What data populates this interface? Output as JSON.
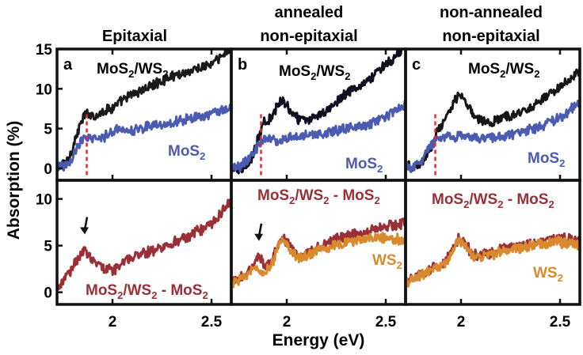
{
  "figure": {
    "column_titles": {
      "a": [
        "Epitaxial"
      ],
      "b": [
        "annealed",
        "non-epitaxial"
      ],
      "c": [
        "non-annealed",
        "non-epitaxial"
      ]
    },
    "ylabel": "Absorption (%)",
    "xlabel": "Energy (eV)",
    "colors": {
      "heterostructure": "#1a1a1a",
      "heterostructure_annealed": "#0e0e1e",
      "mos2": "#4a5bb0",
      "difference": "#9a2f35",
      "ws2": "#d98a2e",
      "marker_line": "#e8283a",
      "arrow": "#111111"
    }
  },
  "chart_data": [
    {
      "panel": "a",
      "title": "Epitaxial",
      "row": "top",
      "type": "line",
      "xlim": [
        1.72,
        2.6
      ],
      "ylim": [
        -1.5,
        15
      ],
      "yticks": [
        0,
        5,
        10,
        15
      ],
      "xticks": [
        2,
        2.5
      ],
      "marker_energy": 1.87,
      "series": [
        {
          "label": [
            "MoS",
            "2",
            "/WS",
            "2"
          ],
          "color": "#1a1a1a",
          "points": [
            [
              1.72,
              0.3
            ],
            [
              1.75,
              0.5
            ],
            [
              1.78,
              1.2
            ],
            [
              1.81,
              3.5
            ],
            [
              1.84,
              5.6
            ],
            [
              1.86,
              6.7
            ],
            [
              1.88,
              6.9
            ],
            [
              1.92,
              6.6
            ],
            [
              1.96,
              7.3
            ],
            [
              2.0,
              7.6
            ],
            [
              2.05,
              8.5
            ],
            [
              2.1,
              9.3
            ],
            [
              2.2,
              10.4
            ],
            [
              2.3,
              11.6
            ],
            [
              2.4,
              12.3
            ],
            [
              2.5,
              13.1
            ],
            [
              2.55,
              14.0
            ],
            [
              2.6,
              15.2
            ]
          ]
        },
        {
          "label": [
            "MoS",
            "2"
          ],
          "color": "#4a5bb0",
          "points": [
            [
              1.72,
              0.2
            ],
            [
              1.77,
              0.3
            ],
            [
              1.8,
              1.5
            ],
            [
              1.84,
              3.4
            ],
            [
              1.88,
              4.1
            ],
            [
              1.92,
              3.6
            ],
            [
              1.96,
              4.0
            ],
            [
              2.0,
              4.7
            ],
            [
              2.05,
              5.0
            ],
            [
              2.1,
              4.8
            ],
            [
              2.2,
              5.4
            ],
            [
              2.3,
              5.8
            ],
            [
              2.4,
              6.3
            ],
            [
              2.5,
              6.9
            ],
            [
              2.6,
              7.6
            ]
          ]
        }
      ]
    },
    {
      "panel": "b",
      "title": "annealed non-epitaxial",
      "row": "top",
      "type": "line",
      "xlim": [
        1.72,
        2.6
      ],
      "ylim": [
        -1.5,
        15
      ],
      "xticks": [
        2,
        2.5
      ],
      "marker_energy": 1.87,
      "series": [
        {
          "label": [
            "MoS",
            "2",
            "/WS",
            "2"
          ],
          "color": "#0e0e1e",
          "points": [
            [
              1.72,
              0.2
            ],
            [
              1.76,
              0.0
            ],
            [
              1.8,
              0.4
            ],
            [
              1.83,
              1.6
            ],
            [
              1.86,
              4.0
            ],
            [
              1.88,
              5.6
            ],
            [
              1.92,
              6.3
            ],
            [
              1.96,
              8.2
            ],
            [
              1.98,
              8.8
            ],
            [
              2.01,
              7.5
            ],
            [
              2.05,
              6.3
            ],
            [
              2.1,
              5.9
            ],
            [
              2.15,
              6.5
            ],
            [
              2.2,
              7.3
            ],
            [
              2.3,
              9.5
            ],
            [
              2.4,
              10.9
            ],
            [
              2.5,
              13.0
            ],
            [
              2.6,
              15.3
            ]
          ]
        },
        {
          "label": [
            "MoS",
            "2"
          ],
          "color": "#4a5bb0",
          "points": [
            [
              1.72,
              0.3
            ],
            [
              1.76,
              0.2
            ],
            [
              1.8,
              0.9
            ],
            [
              1.84,
              2.3
            ],
            [
              1.88,
              3.6
            ],
            [
              1.92,
              3.8
            ],
            [
              1.96,
              3.4
            ],
            [
              2.0,
              3.8
            ],
            [
              2.1,
              4.2
            ],
            [
              2.2,
              4.5
            ],
            [
              2.3,
              5.0
            ],
            [
              2.4,
              5.4
            ],
            [
              2.5,
              6.5
            ],
            [
              2.6,
              8.0
            ]
          ]
        }
      ]
    },
    {
      "panel": "c",
      "title": "non-annealed non-epitaxial",
      "row": "top",
      "type": "line",
      "xlim": [
        1.72,
        2.6
      ],
      "ylim": [
        -1.5,
        15
      ],
      "xticks": [
        2,
        2.5
      ],
      "marker_energy": 1.87,
      "series": [
        {
          "label": [
            "MoS",
            "2",
            "/WS",
            "2"
          ],
          "color": "#151515",
          "points": [
            [
              1.72,
              0.4
            ],
            [
              1.76,
              0.1
            ],
            [
              1.8,
              0.6
            ],
            [
              1.84,
              2.2
            ],
            [
              1.88,
              4.6
            ],
            [
              1.92,
              6.0
            ],
            [
              1.96,
              8.2
            ],
            [
              1.99,
              9.4
            ],
            [
              2.02,
              8.4
            ],
            [
              2.06,
              6.8
            ],
            [
              2.1,
              6.1
            ],
            [
              2.15,
              5.7
            ],
            [
              2.2,
              6.3
            ],
            [
              2.3,
              7.0
            ],
            [
              2.4,
              8.4
            ],
            [
              2.5,
              10.2
            ],
            [
              2.6,
              12.4
            ]
          ]
        },
        {
          "label": [
            "MoS",
            "2"
          ],
          "color": "#4a5bb0",
          "points": [
            [
              1.72,
              0.3
            ],
            [
              1.76,
              0.1
            ],
            [
              1.8,
              0.8
            ],
            [
              1.84,
              2.5
            ],
            [
              1.88,
              3.8
            ],
            [
              1.92,
              4.1
            ],
            [
              1.96,
              3.7
            ],
            [
              2.0,
              4.2
            ],
            [
              2.04,
              4.0
            ],
            [
              2.1,
              3.7
            ],
            [
              2.2,
              4.0
            ],
            [
              2.3,
              4.5
            ],
            [
              2.4,
              5.2
            ],
            [
              2.5,
              6.3
            ],
            [
              2.6,
              8.3
            ]
          ]
        }
      ]
    },
    {
      "panel": "a",
      "row": "bottom",
      "type": "line",
      "xlim": [
        1.72,
        2.6
      ],
      "ylim": [
        -1.3,
        12
      ],
      "yticks": [
        0,
        5,
        10
      ],
      "xticks": [
        2,
        2.5
      ],
      "arrow_energy": 1.86,
      "series": [
        {
          "label": [
            "MoS",
            "2",
            "/WS",
            "2",
            " - MoS",
            "2"
          ],
          "color": "#9a2f35",
          "points": [
            [
              1.72,
              0.2
            ],
            [
              1.76,
              1.4
            ],
            [
              1.8,
              2.7
            ],
            [
              1.83,
              3.8
            ],
            [
              1.86,
              4.6
            ],
            [
              1.89,
              3.6
            ],
            [
              1.92,
              2.9
            ],
            [
              1.96,
              2.5
            ],
            [
              2.0,
              2.3
            ],
            [
              2.05,
              3.2
            ],
            [
              2.1,
              3.7
            ],
            [
              2.15,
              4.1
            ],
            [
              2.2,
              4.5
            ],
            [
              2.3,
              5.3
            ],
            [
              2.4,
              6.2
            ],
            [
              2.5,
              7.2
            ],
            [
              2.6,
              10.0
            ]
          ]
        }
      ]
    },
    {
      "panel": "b",
      "row": "bottom",
      "type": "line",
      "xlim": [
        1.72,
        2.6
      ],
      "ylim": [
        -1.3,
        12
      ],
      "xticks": [
        2,
        2.5
      ],
      "arrow_energy": 1.86,
      "series": [
        {
          "label": [
            "MoS",
            "2",
            "/WS",
            "2",
            " - MoS",
            "2"
          ],
          "color": "#9a2f35",
          "points": [
            [
              1.72,
              1.0
            ],
            [
              1.76,
              1.5
            ],
            [
              1.8,
              2.2
            ],
            [
              1.84,
              3.2
            ],
            [
              1.86,
              3.9
            ],
            [
              1.89,
              2.8
            ],
            [
              1.92,
              3.0
            ],
            [
              1.96,
              5.3
            ],
            [
              1.99,
              5.7
            ],
            [
              2.02,
              4.7
            ],
            [
              2.06,
              3.8
            ],
            [
              2.1,
              4.2
            ],
            [
              2.2,
              5.3
            ],
            [
              2.3,
              5.9
            ],
            [
              2.4,
              6.5
            ],
            [
              2.5,
              7.1
            ],
            [
              2.6,
              7.5
            ]
          ]
        },
        {
          "label": [
            "WS",
            "2"
          ],
          "color": "#d98a2e",
          "points": [
            [
              1.72,
              0.9
            ],
            [
              1.76,
              1.4
            ],
            [
              1.8,
              2.0
            ],
            [
              1.84,
              2.5
            ],
            [
              1.88,
              2.3
            ],
            [
              1.92,
              2.7
            ],
            [
              1.96,
              5.1
            ],
            [
              1.99,
              5.4
            ],
            [
              2.02,
              4.5
            ],
            [
              2.06,
              3.6
            ],
            [
              2.1,
              3.9
            ],
            [
              2.2,
              4.8
            ],
            [
              2.3,
              5.4
            ],
            [
              2.4,
              5.7
            ],
            [
              2.5,
              5.9
            ],
            [
              2.6,
              5.6
            ]
          ]
        }
      ]
    },
    {
      "panel": "c",
      "row": "bottom",
      "type": "line",
      "xlim": [
        1.72,
        2.6
      ],
      "ylim": [
        -1.3,
        12
      ],
      "xticks": [
        2,
        2.5
      ],
      "series": [
        {
          "label": [
            "MoS",
            "2",
            "/WS",
            "2",
            " - MoS",
            "2"
          ],
          "color": "#9a2f35",
          "points": [
            [
              1.72,
              1.2
            ],
            [
              1.76,
              1.5
            ],
            [
              1.8,
              2.0
            ],
            [
              1.84,
              2.4
            ],
            [
              1.88,
              2.8
            ],
            [
              1.92,
              3.2
            ],
            [
              1.96,
              4.6
            ],
            [
              1.99,
              5.8
            ],
            [
              2.02,
              5.2
            ],
            [
              2.06,
              4.0
            ],
            [
              2.1,
              3.9
            ],
            [
              2.2,
              4.6
            ],
            [
              2.3,
              5.0
            ],
            [
              2.4,
              5.4
            ],
            [
              2.5,
              5.8
            ],
            [
              2.6,
              5.5
            ]
          ]
        },
        {
          "label": [
            "WS",
            "2"
          ],
          "color": "#d98a2e",
          "points": [
            [
              1.72,
              0.9
            ],
            [
              1.76,
              1.3
            ],
            [
              1.8,
              1.8
            ],
            [
              1.84,
              2.2
            ],
            [
              1.88,
              2.6
            ],
            [
              1.92,
              3.0
            ],
            [
              1.96,
              4.5
            ],
            [
              1.99,
              5.6
            ],
            [
              2.02,
              5.0
            ],
            [
              2.06,
              3.8
            ],
            [
              2.1,
              3.7
            ],
            [
              2.2,
              4.4
            ],
            [
              2.3,
              4.8
            ],
            [
              2.4,
              5.1
            ],
            [
              2.5,
              5.4
            ],
            [
              2.6,
              5.2
            ]
          ]
        }
      ]
    }
  ]
}
